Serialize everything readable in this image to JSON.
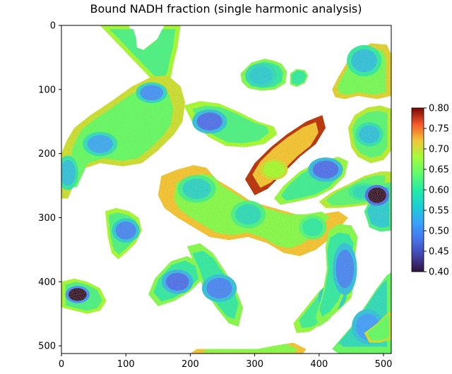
{
  "chart_data": {
    "type": "heatmap",
    "title": "Bound NADH fraction (single harmonic analysis)",
    "xlabel": "",
    "ylabel": "",
    "xlim": [
      0,
      512
    ],
    "ylim": [
      512,
      0
    ],
    "x_ticks": [
      "0",
      "100",
      "200",
      "300",
      "400",
      "500"
    ],
    "y_ticks": [
      "0",
      "100",
      "200",
      "300",
      "400",
      "500"
    ],
    "colorbar": {
      "colormap": "turbo",
      "range": [
        0.4,
        0.8
      ],
      "ticks": [
        "0.40",
        "0.45",
        "0.50",
        "0.55",
        "0.60",
        "0.65",
        "0.70",
        "0.75",
        "0.80"
      ]
    },
    "background": "#ffffff",
    "grid": false,
    "cells": [
      {
        "outline": [
          [
            60,
            0
          ],
          [
            105,
            0
          ],
          [
            110,
            15
          ],
          [
            112,
            35
          ],
          [
            125,
            40
          ],
          [
            150,
            20
          ],
          [
            160,
            0
          ],
          [
            185,
            0
          ],
          [
            180,
            35
          ],
          [
            175,
            55
          ],
          [
            170,
            80
          ],
          [
            160,
            105
          ]
        ],
        "level": 0.62,
        "nuclei": []
      },
      {
        "outline": [
          [
            0,
            230
          ],
          [
            0,
            200
          ],
          [
            8,
            180
          ],
          [
            20,
            160
          ],
          [
            45,
            140
          ],
          [
            75,
            120
          ],
          [
            110,
            95
          ],
          [
            140,
            80
          ],
          [
            165,
            78
          ],
          [
            185,
            95
          ],
          [
            192,
            120
          ],
          [
            188,
            150
          ],
          [
            175,
            170
          ],
          [
            150,
            195
          ],
          [
            125,
            215
          ],
          [
            95,
            220
          ],
          [
            60,
            215
          ],
          [
            30,
            225
          ],
          [
            10,
            270
          ],
          [
            0,
            270
          ]
        ],
        "level": 0.64,
        "nuclei": [
          [
            60,
            185,
            20,
            14,
            0.53
          ],
          [
            140,
            105,
            18,
            12,
            0.51
          ],
          [
            10,
            230,
            12,
            20,
            0.55
          ]
        ]
      },
      {
        "outline": [
          [
            190,
            125
          ],
          [
            215,
            118
          ],
          [
            245,
            122
          ],
          [
            275,
            135
          ],
          [
            305,
            150
          ],
          [
            330,
            158
          ],
          [
            335,
            170
          ],
          [
            315,
            185
          ],
          [
            285,
            190
          ],
          [
            255,
            188
          ],
          [
            230,
            175
          ],
          [
            205,
            155
          ]
        ],
        "level": 0.62,
        "nuclei": [
          [
            230,
            150,
            20,
            14,
            0.48
          ]
        ]
      },
      {
        "outline": [
          [
            278,
            75
          ],
          [
            295,
            58
          ],
          [
            315,
            52
          ],
          [
            330,
            55
          ],
          [
            342,
            60
          ],
          [
            350,
            72
          ],
          [
            348,
            90
          ],
          [
            332,
            100
          ],
          [
            310,
            102
          ],
          [
            290,
            98
          ],
          [
            280,
            88
          ]
        ],
        "level": 0.6,
        "nuclei": [
          [
            310,
            78,
            18,
            14,
            0.56
          ]
        ]
      },
      {
        "outline": [
          [
            355,
            75
          ],
          [
            365,
            68
          ],
          [
            378,
            70
          ],
          [
            383,
            78
          ],
          [
            378,
            90
          ],
          [
            365,
            96
          ],
          [
            355,
            92
          ]
        ],
        "level": 0.6,
        "nuclei": []
      },
      {
        "outline": [
          [
            420,
            100
          ],
          [
            430,
            80
          ],
          [
            445,
            55
          ],
          [
            460,
            40
          ],
          [
            480,
            28
          ],
          [
            505,
            30
          ],
          [
            512,
            45
          ],
          [
            512,
            110
          ],
          [
            490,
            115
          ],
          [
            460,
            110
          ],
          [
            440,
            115
          ],
          [
            425,
            112
          ]
        ],
        "level": 0.65,
        "nuclei": [
          [
            470,
            55,
            20,
            18,
            0.55
          ]
        ]
      },
      {
        "outline": [
          [
            285,
            240
          ],
          [
            300,
            215
          ],
          [
            325,
            190
          ],
          [
            350,
            170
          ],
          [
            380,
            150
          ],
          [
            405,
            140
          ],
          [
            410,
            160
          ],
          [
            395,
            185
          ],
          [
            370,
            205
          ],
          [
            345,
            230
          ],
          [
            320,
            255
          ],
          [
            300,
            265
          ]
        ],
        "level": 0.72,
        "nuclei": [
          [
            330,
            225,
            16,
            12,
            0.68
          ]
        ]
      },
      {
        "outline": [
          [
            445,
            160
          ],
          [
            455,
            140
          ],
          [
            475,
            128
          ],
          [
            495,
            125
          ],
          [
            512,
            130
          ],
          [
            512,
            195
          ],
          [
            500,
            210
          ],
          [
            480,
            215
          ],
          [
            460,
            205
          ],
          [
            450,
            190
          ]
        ],
        "level": 0.63,
        "nuclei": [
          [
            478,
            170,
            16,
            14,
            0.55
          ]
        ]
      },
      {
        "outline": [
          [
            330,
            270
          ],
          [
            345,
            250
          ],
          [
            370,
            228
          ],
          [
            400,
            212
          ],
          [
            430,
            205
          ],
          [
            445,
            212
          ],
          [
            440,
            235
          ],
          [
            420,
            255
          ],
          [
            395,
            268
          ],
          [
            365,
            275
          ],
          [
            340,
            280
          ]
        ],
        "level": 0.61,
        "nuclei": [
          [
            410,
            225,
            20,
            14,
            0.48
          ]
        ]
      },
      {
        "outline": [
          [
            400,
            275
          ],
          [
            420,
            260
          ],
          [
            445,
            248
          ],
          [
            470,
            235
          ],
          [
            495,
            228
          ],
          [
            512,
            228
          ],
          [
            512,
            270
          ],
          [
            490,
            278
          ],
          [
            460,
            282
          ],
          [
            430,
            285
          ],
          [
            410,
            285
          ]
        ],
        "level": 0.63,
        "nuclei": [
          [
            470,
            260,
            18,
            10,
            0.58
          ]
        ]
      },
      {
        "outline": [
          [
            470,
            290
          ],
          [
            485,
            262
          ],
          [
            505,
            245
          ],
          [
            512,
            245
          ],
          [
            512,
            320
          ],
          [
            495,
            322
          ],
          [
            478,
            315
          ]
        ],
        "level": 0.56,
        "nuclei": [
          [
            490,
            265,
            14,
            12,
            0.4
          ]
        ]
      },
      {
        "outline": [
          [
            155,
            235
          ],
          [
            180,
            225
          ],
          [
            205,
            218
          ],
          [
            225,
            222
          ],
          [
            240,
            240
          ],
          [
            265,
            255
          ],
          [
            295,
            275
          ],
          [
            330,
            285
          ],
          [
            365,
            295
          ],
          [
            400,
            295
          ],
          [
            430,
            290
          ],
          [
            445,
            300
          ],
          [
            420,
            330
          ],
          [
            395,
            350
          ],
          [
            370,
            360
          ],
          [
            345,
            355
          ],
          [
            320,
            340
          ],
          [
            290,
            330
          ],
          [
            260,
            335
          ],
          [
            230,
            330
          ],
          [
            205,
            315
          ],
          [
            180,
            300
          ],
          [
            160,
            285
          ],
          [
            150,
            265
          ]
        ],
        "level": 0.66,
        "nuclei": [
          [
            210,
            255,
            22,
            16,
            0.57
          ],
          [
            290,
            295,
            20,
            16,
            0.58
          ],
          [
            390,
            315,
            16,
            14,
            0.6
          ]
        ]
      },
      {
        "outline": [
          [
            68,
            290
          ],
          [
            85,
            285
          ],
          [
            105,
            290
          ],
          [
            120,
            300
          ],
          [
            125,
            320
          ],
          [
            115,
            340
          ],
          [
            100,
            355
          ],
          [
            88,
            365
          ],
          [
            78,
            355
          ],
          [
            72,
            330
          ]
        ],
        "level": 0.62,
        "nuclei": [
          [
            100,
            320,
            16,
            14,
            0.5
          ]
        ]
      },
      {
        "outline": [
          [
            135,
            420
          ],
          [
            145,
            395
          ],
          [
            170,
            368
          ],
          [
            195,
            360
          ],
          [
            215,
            370
          ],
          [
            220,
            395
          ],
          [
            200,
            415
          ],
          [
            175,
            430
          ],
          [
            150,
            438
          ]
        ],
        "level": 0.6,
        "nuclei": [
          [
            180,
            400,
            18,
            14,
            0.48
          ]
        ]
      },
      {
        "outline": [
          [
            195,
            345
          ],
          [
            215,
            340
          ],
          [
            235,
            355
          ],
          [
            255,
            385
          ],
          [
            270,
            410
          ],
          [
            282,
            440
          ],
          [
            275,
            470
          ],
          [
            260,
            465
          ],
          [
            240,
            440
          ],
          [
            220,
            410
          ],
          [
            210,
            380
          ]
        ],
        "level": 0.6,
        "nuclei": [
          [
            245,
            410,
            20,
            16,
            0.5
          ]
        ]
      },
      {
        "outline": [
          [
            360,
            465
          ],
          [
            380,
            440
          ],
          [
            400,
            415
          ],
          [
            420,
            395
          ],
          [
            440,
            390
          ],
          [
            455,
            400
          ],
          [
            450,
            425
          ],
          [
            430,
            445
          ],
          [
            410,
            462
          ],
          [
            385,
            478
          ],
          [
            365,
            480
          ]
        ],
        "level": 0.61,
        "nuclei": [
          [
            420,
            425,
            16,
            14,
            0.52
          ]
        ]
      },
      {
        "outline": [
          [
            415,
            320
          ],
          [
            430,
            310
          ],
          [
            450,
            312
          ],
          [
            460,
            330
          ],
          [
            455,
            365
          ],
          [
            445,
            405
          ],
          [
            430,
            440
          ],
          [
            415,
            460
          ],
          [
            400,
            470
          ],
          [
            395,
            455
          ],
          [
            405,
            420
          ],
          [
            412,
            380
          ],
          [
            410,
            345
          ]
        ],
        "level": 0.6,
        "nuclei": [
          [
            440,
            380,
            14,
            30,
            0.5
          ]
        ]
      },
      {
        "outline": [
          [
            420,
            505
          ],
          [
            450,
            470
          ],
          [
            470,
            440
          ],
          [
            490,
            410
          ],
          [
            505,
            390
          ],
          [
            512,
            385
          ],
          [
            512,
            512
          ],
          [
            430,
            512
          ]
        ],
        "level": 0.58,
        "nuclei": [
          [
            475,
            470,
            18,
            20,
            0.52
          ]
        ]
      },
      {
        "outline": [
          [
            0,
            400
          ],
          [
            20,
            395
          ],
          [
            40,
            400
          ],
          [
            60,
            410
          ],
          [
            70,
            430
          ],
          [
            60,
            445
          ],
          [
            40,
            450
          ],
          [
            20,
            445
          ],
          [
            0,
            440
          ]
        ],
        "level": 0.62,
        "nuclei": [
          [
            25,
            420,
            14,
            10,
            0.4
          ]
        ]
      },
      {
        "outline": [
          [
            200,
            512
          ],
          [
            210,
            505
          ],
          [
            260,
            505
          ],
          [
            305,
            505
          ],
          [
            330,
            500
          ],
          [
            360,
            495
          ],
          [
            380,
            505
          ],
          [
            375,
            512
          ]
        ],
        "level": 0.66,
        "nuclei": []
      },
      {
        "outline": [
          [
            470,
            480
          ],
          [
            490,
            465
          ],
          [
            505,
            450
          ],
          [
            512,
            445
          ],
          [
            512,
            490
          ],
          [
            495,
            495
          ],
          [
            478,
            495
          ]
        ],
        "level": 0.64,
        "nuclei": []
      }
    ]
  }
}
